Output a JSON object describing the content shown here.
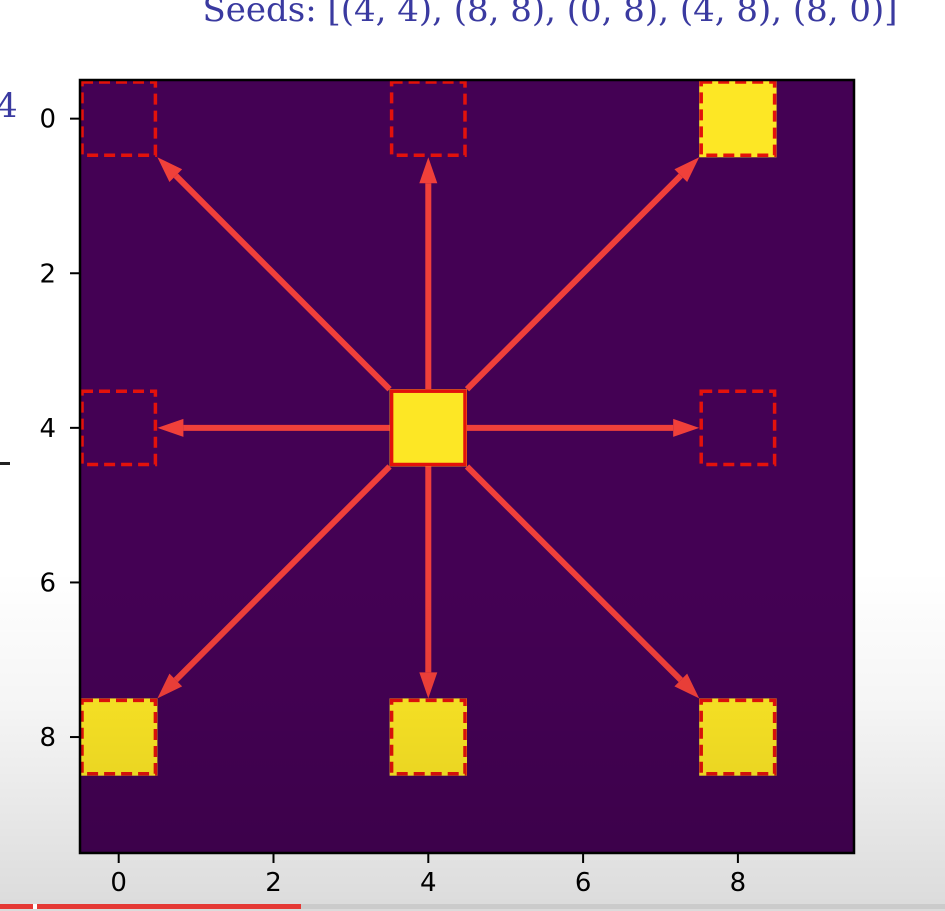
{
  "title": "Seeds: [(4, 4), (8, 8), (0, 8), (4, 8), (8, 0)]",
  "left_edge_text": "4",
  "video_progress": {
    "fraction": 0.318
  },
  "chart_data": {
    "type": "heatmap",
    "grid_size": [
      10,
      10
    ],
    "xlim": [
      -0.5,
      9.5
    ],
    "ylim": [
      9.5,
      -0.5
    ],
    "x_ticks": [
      0,
      2,
      4,
      6,
      8
    ],
    "y_ticks": [
      0,
      2,
      4,
      6,
      8
    ],
    "x_tick_labels": [
      "0",
      "2",
      "4",
      "6",
      "8"
    ],
    "y_tick_labels": [
      "0",
      "2",
      "4",
      "6",
      "8"
    ],
    "background_value": 0,
    "colors": {
      "background": "#440154",
      "filled": "#fde725",
      "highlight": "#e3120b",
      "arrow": "#f0403a"
    },
    "filled_cells": [
      {
        "x": 4,
        "y": 4,
        "border": "solid"
      },
      {
        "x": 8,
        "y": 0,
        "border": "dashed"
      },
      {
        "x": 0,
        "y": 8,
        "border": "dashed"
      },
      {
        "x": 4,
        "y": 8,
        "border": "dashed"
      },
      {
        "x": 8,
        "y": 8,
        "border": "dashed"
      }
    ],
    "empty_highlight_cells": [
      {
        "x": 0,
        "y": 0
      },
      {
        "x": 4,
        "y": 0
      },
      {
        "x": 0,
        "y": 4
      },
      {
        "x": 8,
        "y": 4
      }
    ],
    "arrows": [
      {
        "from": [
          4,
          4
        ],
        "to": [
          0,
          0
        ]
      },
      {
        "from": [
          4,
          4
        ],
        "to": [
          4,
          0
        ]
      },
      {
        "from": [
          4,
          4
        ],
        "to": [
          8,
          0
        ]
      },
      {
        "from": [
          4,
          4
        ],
        "to": [
          0,
          4
        ]
      },
      {
        "from": [
          4,
          4
        ],
        "to": [
          8,
          4
        ]
      },
      {
        "from": [
          4,
          4
        ],
        "to": [
          0,
          8
        ]
      },
      {
        "from": [
          4,
          4
        ],
        "to": [
          4,
          8
        ]
      },
      {
        "from": [
          4,
          4
        ],
        "to": [
          8,
          8
        ]
      }
    ]
  }
}
